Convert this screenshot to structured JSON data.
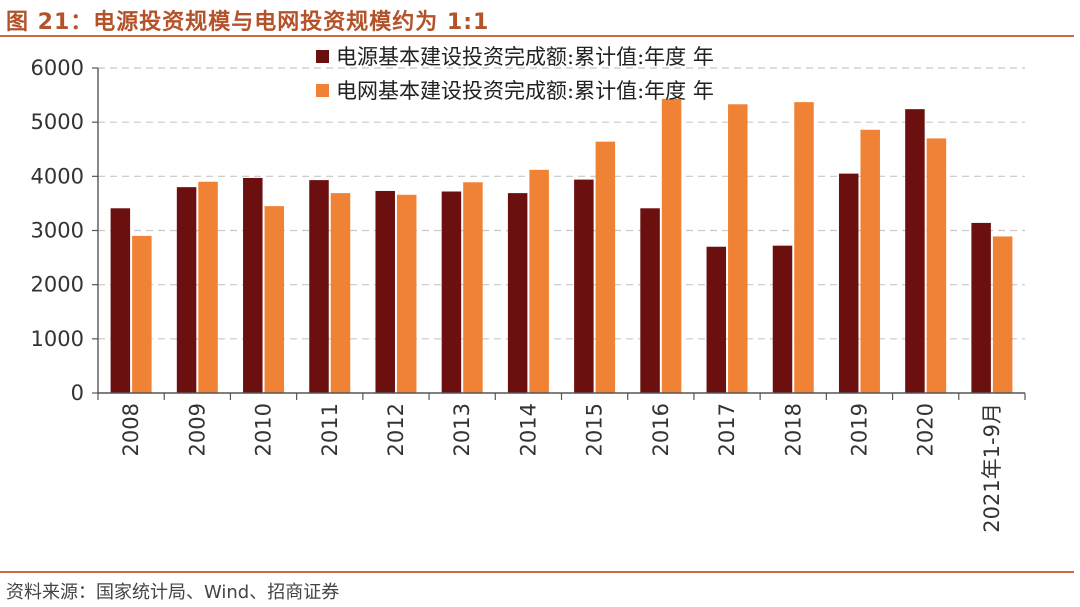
{
  "figure": {
    "title": "图 21：电源投资规模与电网投资规模约为 1:1",
    "source": "资料来源：国家统计局、Wind、招商证券"
  },
  "colors": {
    "power_source": "#6b0f0f",
    "grid": "#ef8234",
    "accent": "#b4532a"
  },
  "chart_data": {
    "type": "bar",
    "title": "电源投资规模与电网投资规模约为 1:1",
    "xlabel": "",
    "ylabel": "",
    "ylim": [
      0,
      6000
    ],
    "yticks": [
      0,
      1000,
      2000,
      3000,
      4000,
      5000,
      6000
    ],
    "grid": true,
    "legend_position": "top-center",
    "categories": [
      "2008",
      "2009",
      "2010",
      "2011",
      "2012",
      "2013",
      "2014",
      "2015",
      "2016",
      "2017",
      "2018",
      "2019",
      "2020",
      "2021年1-9月"
    ],
    "series": [
      {
        "name": "电源基本建设投资完成额:累计值:年度 年",
        "values": [
          3410,
          3800,
          3970,
          3930,
          3730,
          3720,
          3690,
          3940,
          3410,
          2700,
          2720,
          4050,
          5240,
          3140
        ]
      },
      {
        "name": "电网基本建设投资完成额:累计值:年度 年",
        "values": [
          2900,
          3900,
          3450,
          3690,
          3660,
          3890,
          4120,
          4640,
          5430,
          5330,
          5370,
          4860,
          4700,
          2890
        ]
      }
    ]
  }
}
